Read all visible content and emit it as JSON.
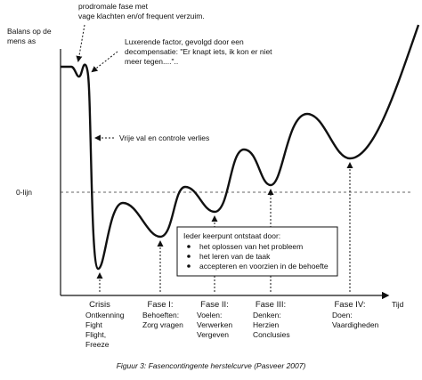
{
  "diagram": {
    "y_axis_label": [
      "Balans op de",
      "mens as"
    ],
    "x_axis_label": "Tijd",
    "zero_line_label": "0-lijn",
    "annotations": [
      {
        "lines": [
          "prodromale fase met",
          "vage klachten en/of frequent verzuim."
        ]
      },
      {
        "lines": [
          "Luxerende factor, gevolgd door een",
          "decompensatie: \"Er knapt iets, ik kon er niet",
          "meer tegen....\".."
        ]
      },
      {
        "lines": [
          "Vrije val en controle verlies"
        ]
      }
    ],
    "box": {
      "title": "Ieder keerpunt ontstaat door:",
      "items": [
        "het oplossen van het probleem",
        "het leren van de taak",
        "accepteren en voorzien in de behoefte"
      ]
    },
    "phases": [
      {
        "title": "Crisis",
        "lines": [
          "Ontkenning",
          "Fight",
          "Flight,",
          "Freeze"
        ]
      },
      {
        "title": "Fase I:",
        "lines": [
          "Behoeften:",
          "Zorg vragen"
        ]
      },
      {
        "title": "Fase II:",
        "lines": [
          "Voelen:",
          "Verwerken",
          "Vergeven"
        ]
      },
      {
        "title": "Fase III:",
        "lines": [
          "Denken:",
          "Herzien",
          "Conclusies"
        ]
      },
      {
        "title": "Fase IV:",
        "lines": [
          "Doen:",
          "Vaardigheden"
        ]
      }
    ],
    "caption": "Figuur 3: Fasencontingente herstelcurve (Pasveer 2007)"
  }
}
